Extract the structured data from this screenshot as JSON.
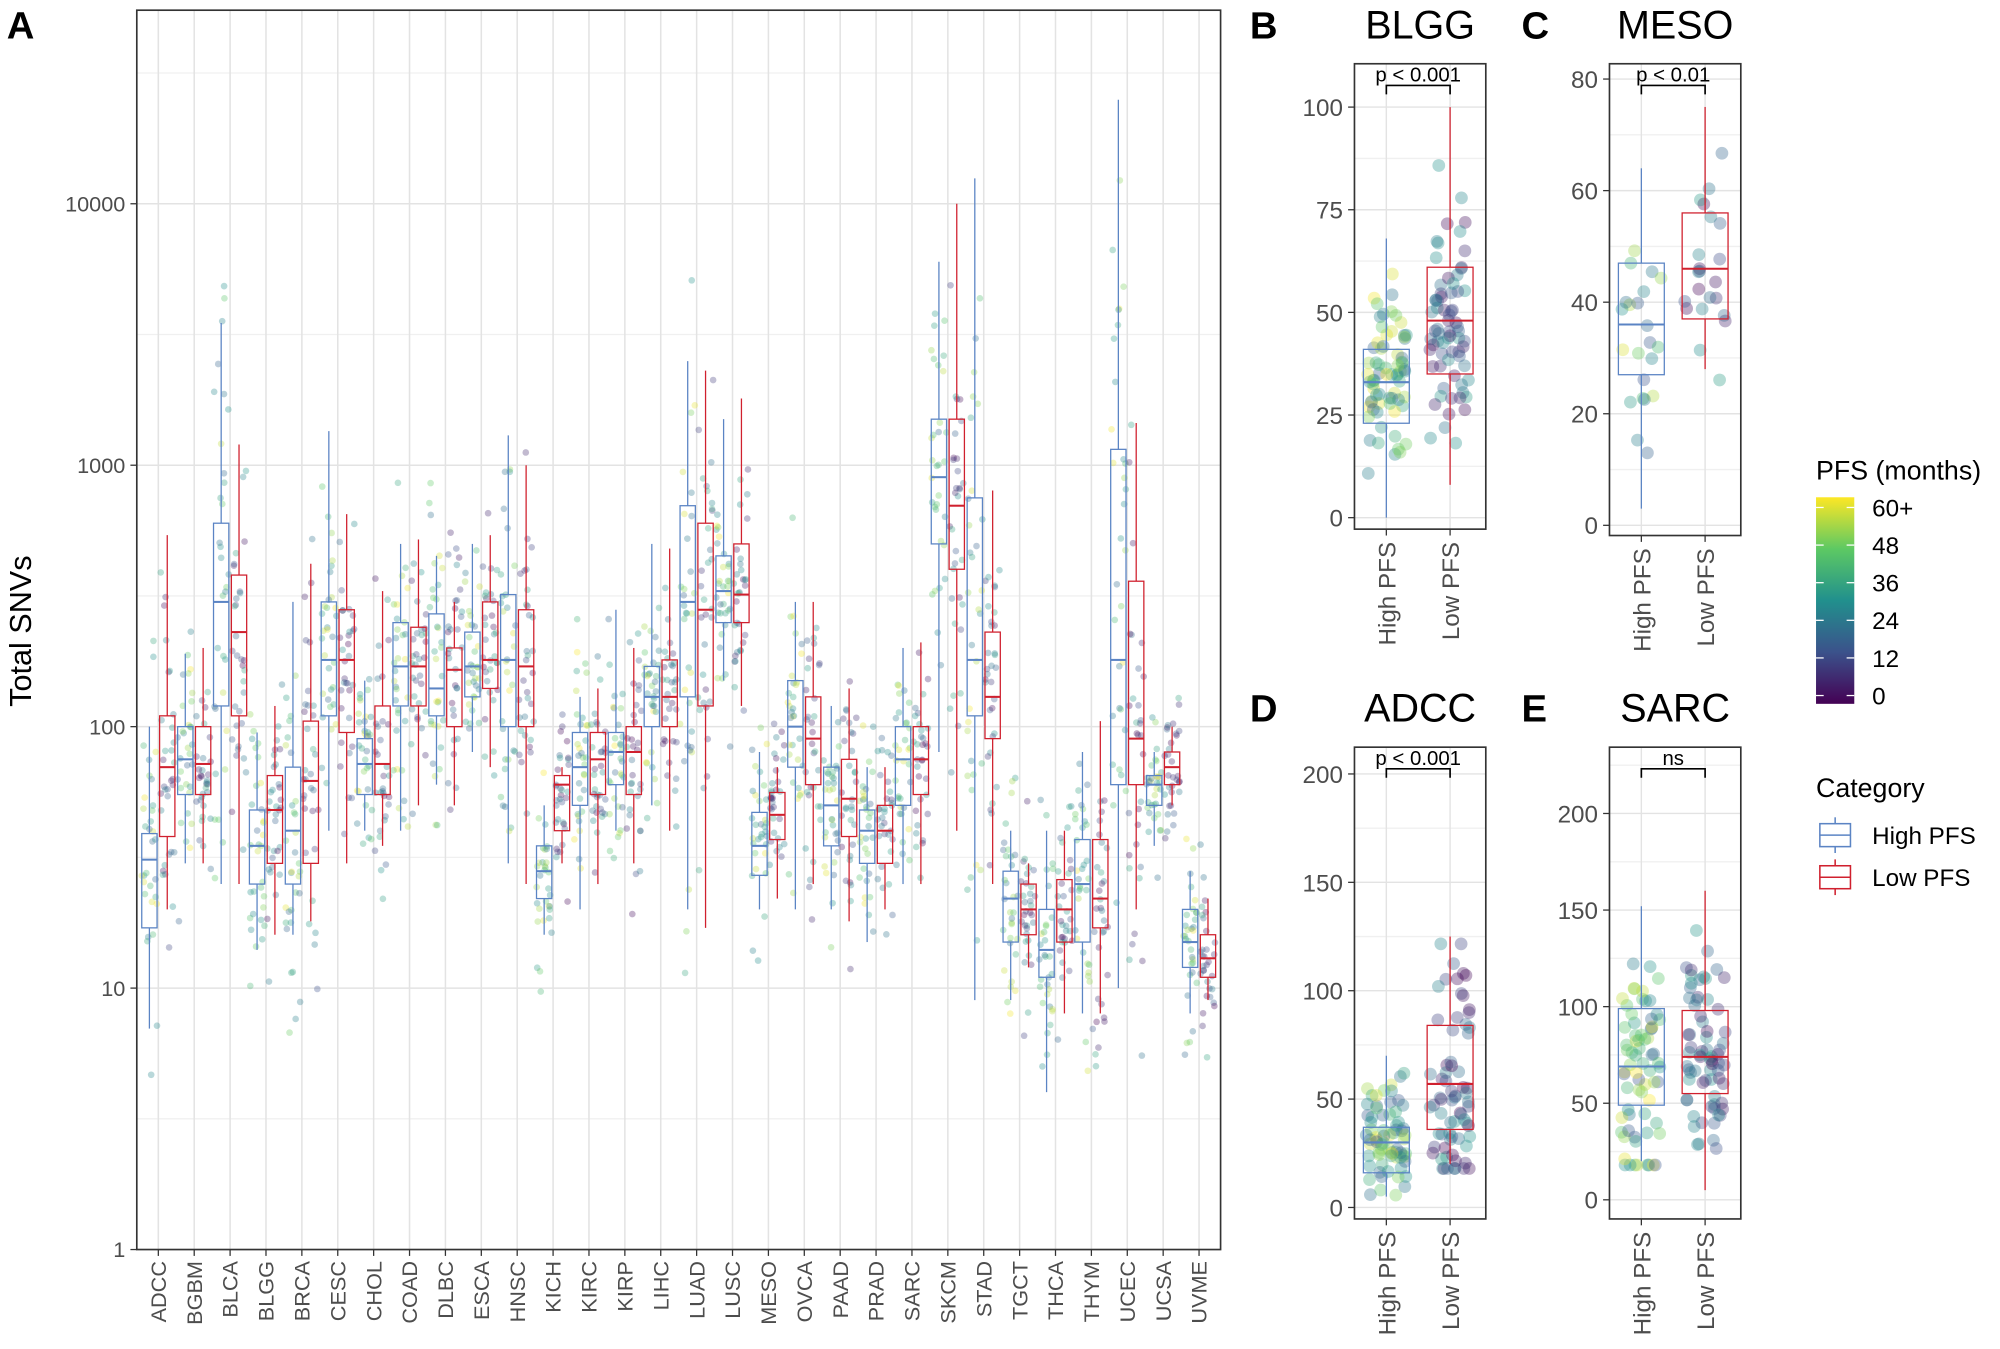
{
  "colors": {
    "high": "#5b84c4",
    "low": "#d0202e",
    "viridis": [
      "#440154",
      "#3b528b",
      "#21908d",
      "#5dc963",
      "#fde725"
    ]
  },
  "panel_letters": [
    "A",
    "B",
    "C",
    "D",
    "E"
  ],
  "legend": {
    "color_title": "PFS (months)",
    "color_labels": [
      "60+",
      "48",
      "36",
      "24",
      "12",
      "0"
    ],
    "category_title": "Category",
    "category_items": [
      "High PFS",
      "Low PFS"
    ]
  },
  "chart_data": [
    {
      "type": "boxplot",
      "panel": "A",
      "ylabel": "Total SNVs",
      "yscale": "log10",
      "ylim": [
        1,
        55000
      ],
      "yticks": [
        "1",
        "10",
        "100",
        "1000",
        "10000"
      ],
      "grid": true,
      "stat_order": [
        "whisker_low",
        "q1",
        "median",
        "q3",
        "whisker_high"
      ],
      "categories": [
        "ADCC",
        "BGBM",
        "BLCA",
        "BLGG",
        "BRCA",
        "CESC",
        "CHOL",
        "COAD",
        "DLBC",
        "ESCA",
        "HNSC",
        "KICH",
        "KIRC",
        "KIRP",
        "LIHC",
        "LUAD",
        "LUSC",
        "MESO",
        "OVCA",
        "PAAD",
        "PRAD",
        "SARC",
        "SKCM",
        "STAD",
        "TGCT",
        "THCA",
        "THYM",
        "UCEC",
        "UCSA",
        "UVME"
      ],
      "series": [
        {
          "name": "High PFS",
          "boxes": [
            [
              7,
              17,
              31,
              39,
              100
            ],
            [
              30,
              55,
              75,
              100,
              190
            ],
            [
              25,
              120,
              300,
              600,
              3500
            ],
            [
              14,
              25,
              35,
              48,
              95
            ],
            [
              16,
              25,
              40,
              70,
              300
            ],
            [
              40,
              110,
              180,
              300,
              1350
            ],
            [
              40,
              55,
              72,
              90,
              150
            ],
            [
              40,
              120,
              170,
              250,
              500
            ],
            [
              60,
              110,
              140,
              270,
              450
            ],
            [
              80,
              130,
              170,
              230,
              500
            ],
            [
              30,
              100,
              180,
              320,
              1300
            ],
            [
              16,
              22,
              28,
              35,
              50
            ],
            [
              20,
              50,
              70,
              95,
              130
            ],
            [
              40,
              60,
              80,
              95,
              280
            ],
            [
              50,
              100,
              130,
              170,
              500
            ],
            [
              20,
              130,
              300,
              700,
              2500
            ],
            [
              150,
              250,
              330,
              450,
              1500
            ],
            [
              20,
              27,
              35,
              47,
              80
            ],
            [
              20,
              70,
              100,
              150,
              300
            ],
            [
              20,
              35,
              50,
              70,
              120
            ],
            [
              15,
              30,
              40,
              48,
              70
            ],
            [
              25,
              50,
              75,
              100,
              200
            ],
            [
              80,
              500,
              900,
              1500,
              6000
            ],
            [
              9,
              110,
              180,
              750,
              12500
            ],
            [
              9,
              15,
              22,
              28,
              40
            ],
            [
              4,
              11,
              14,
              20,
              40
            ],
            [
              8,
              15,
              25,
              37,
              80
            ],
            [
              10,
              60,
              180,
              1150,
              25000
            ],
            [
              35,
              50,
              60,
              65,
              80
            ],
            [
              8,
              12,
              15,
              20,
              28
            ]
          ]
        },
        {
          "name": "Low PFS",
          "boxes": [
            [
              20,
              38,
              70,
              110,
              540
            ],
            [
              30,
              55,
              72,
              100,
              200
            ],
            [
              25,
              110,
              230,
              380,
              1200
            ],
            [
              16,
              30,
              48,
              65,
              120
            ],
            [
              18,
              30,
              62,
              105,
              420
            ],
            [
              30,
              95,
              180,
              280,
              650
            ],
            [
              35,
              55,
              72,
              120,
              330
            ],
            [
              50,
              120,
              170,
              240,
              520
            ],
            [
              50,
              100,
              165,
              200,
              300
            ],
            [
              70,
              140,
              180,
              300,
              540
            ],
            [
              25,
              100,
              170,
              280,
              1000
            ],
            [
              30,
              40,
              60,
              65,
              70
            ],
            [
              25,
              55,
              75,
              95,
              140
            ],
            [
              30,
              55,
              80,
              100,
              200
            ],
            [
              40,
              100,
              130,
              180,
              480
            ],
            [
              17,
              120,
              280,
              600,
              2300
            ],
            [
              120,
              250,
              320,
              500,
              1800
            ],
            [
              22,
              37,
              46,
              56,
              70
            ],
            [
              25,
              60,
              90,
              130,
              300
            ],
            [
              18,
              38,
              53,
              75,
              140
            ],
            [
              20,
              30,
              40,
              50,
              70
            ],
            [
              25,
              55,
              75,
              100,
              210
            ],
            [
              40,
              400,
              700,
              1500,
              10000
            ],
            [
              25,
              90,
              130,
              230,
              800
            ],
            [
              12,
              16,
              20,
              25,
              30
            ],
            [
              8,
              15,
              20,
              26,
              40
            ],
            [
              8,
              17,
              22,
              37,
              105
            ],
            [
              20,
              60,
              90,
              360,
              1450
            ],
            [
              50,
              60,
              70,
              80,
              100
            ],
            [
              9,
              11,
              13,
              16,
              22
            ]
          ]
        }
      ]
    },
    {
      "type": "boxplot",
      "panel": "B",
      "title": "BLGG",
      "ylim": [
        0,
        105
      ],
      "yticks": [
        0,
        25,
        50,
        75,
        100
      ],
      "categories": [
        "High PFS",
        "Low PFS"
      ],
      "annotation": "p < 0.001",
      "boxes": [
        [
          0,
          23,
          33,
          41,
          68
        ],
        [
          8,
          35,
          48,
          61,
          100
        ]
      ]
    },
    {
      "type": "boxplot",
      "panel": "C",
      "title": "MESO",
      "ylim": [
        0,
        80
      ],
      "yticks": [
        0,
        20,
        40,
        60,
        80
      ],
      "categories": [
        "High PFS",
        "Low PFS"
      ],
      "annotation": "p < 0.01",
      "boxes": [
        [
          3,
          27,
          36,
          47,
          64
        ],
        [
          28,
          37,
          46,
          56,
          75
        ]
      ]
    },
    {
      "type": "boxplot",
      "panel": "D",
      "title": "ADCC",
      "ylim": [
        0,
        200
      ],
      "yticks": [
        0,
        50,
        100,
        150,
        200
      ],
      "categories": [
        "High PFS",
        "Low PFS"
      ],
      "annotation": "p < 0.001",
      "boxes": [
        [
          5,
          16,
          30,
          37,
          70
        ],
        [
          20,
          36,
          57,
          84,
          125
        ]
      ]
    },
    {
      "type": "boxplot",
      "panel": "E",
      "title": "SARC",
      "ylim": [
        0,
        220
      ],
      "yticks": [
        0,
        50,
        100,
        150,
        200
      ],
      "categories": [
        "High PFS",
        "Low PFS"
      ],
      "annotation": "ns",
      "boxes": [
        [
          20,
          49,
          69,
          99,
          152
        ],
        [
          5,
          55,
          74,
          98,
          160
        ]
      ]
    }
  ]
}
